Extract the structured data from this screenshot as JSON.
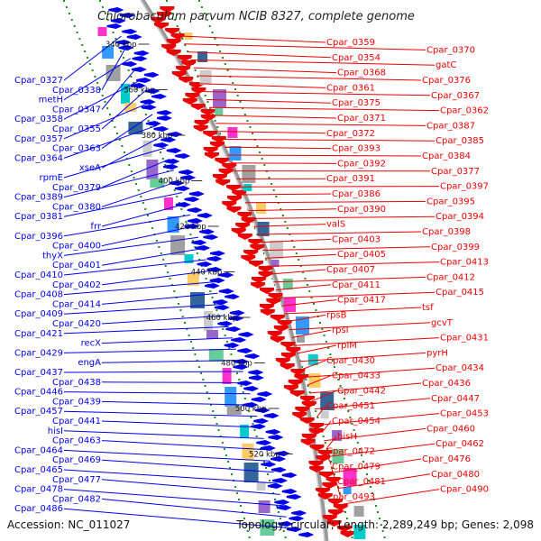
{
  "title": "Chlorobaculum parvum NCIB 8327, complete genome",
  "footer": {
    "accession": "Accession: NC_011027",
    "summary": "Topology: circular; Length: 2,289,249 bp; Genes: 2,098"
  },
  "colors": {
    "forward_strand": "#0000ee",
    "reverse_strand": "#ee0000",
    "backbone": "#999999",
    "dots": "#228b22"
  },
  "ticks": [
    "340 kbp",
    "360 kbp",
    "380 kbp",
    "400 kbp",
    "420 kbp",
    "440 kbp",
    "460 kbp",
    "480 kbp",
    "500 kbp",
    "520 kbp"
  ],
  "left_labels": [
    "Cpar_0327",
    "Cpar_0338",
    "metH",
    "Cpar_0347",
    "Cpar_0358",
    "Cpar_0355",
    "Cpar_0357",
    "Cpar_0363",
    "Cpar_0364",
    "xseA",
    "rpmE",
    "Cpar_0379",
    "Cpar_0389",
    "Cpar_0380",
    "Cpar_0381",
    "frr",
    "Cpar_0396",
    "Cpar_0400",
    "thyX",
    "Cpar_0401",
    "Cpar_0410",
    "Cpar_0402",
    "Cpar_0408",
    "Cpar_0414",
    "Cpar_0409",
    "Cpar_0420",
    "Cpar_0421",
    "recX",
    "Cpar_0429",
    "engA",
    "Cpar_0437",
    "Cpar_0438",
    "Cpar_0446",
    "Cpar_0439",
    "Cpar_0457",
    "Cpar_0441",
    "hisI",
    "Cpar_0463",
    "Cpar_0464",
    "Cpar_0469",
    "Cpar_0465",
    "Cpar_0477",
    "Cpar_0478",
    "Cpar_0482",
    "Cpar_0486"
  ],
  "right_labels": [
    "Cpar_0359",
    "Cpar_0370",
    "Cpar_0354",
    "gatC",
    "Cpar_0368",
    "Cpar_0376",
    "Cpar_0361",
    "Cpar_0367",
    "Cpar_0375",
    "Cpar_0362",
    "Cpar_0371",
    "Cpar_0387",
    "Cpar_0372",
    "Cpar_0385",
    "Cpar_0393",
    "Cpar_0384",
    "Cpar_0392",
    "Cpar_0377",
    "Cpar_0391",
    "Cpar_0397",
    "Cpar_0386",
    "Cpar_0395",
    "Cpar_0390",
    "Cpar_0394",
    "valS",
    "Cpar_0398",
    "Cpar_0403",
    "Cpar_0399",
    "Cpar_0405",
    "Cpar_0413",
    "Cpar_0407",
    "Cpar_0412",
    "Cpar_0411",
    "Cpar_0415",
    "Cpar_0417",
    "tsf",
    "rpsB",
    "gcvT",
    "rpsI",
    "Cpar_0431",
    "rplM",
    "pyrH",
    "Cpar_0430",
    "Cpar_0434",
    "Cpar_0433",
    "Cpar_0436",
    "Cpar_0442",
    "Cpar_0447",
    "Cpar_0451",
    "Cpar_0453",
    "Cpar_0454",
    "Cpar_0460",
    "hisH",
    "Cpar_0462",
    "Cpar_0472",
    "Cpar_0476",
    "Cpar_0479",
    "Cpar_0480",
    "Cpar_0481",
    "Cpar_0490",
    "Cpar_0493"
  ]
}
